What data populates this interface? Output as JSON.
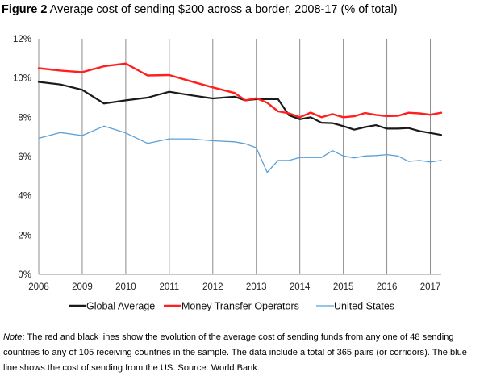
{
  "figure": {
    "label": "Figure 2",
    "title": "Average cost of sending $200 across a border, 2008-17 (% of total)"
  },
  "chart_data": {
    "type": "line",
    "title": "Average cost of sending $200 across a border, 2008-17 (% of total)",
    "xlabel": "",
    "ylabel": "",
    "xlim": [
      2008,
      2017.25
    ],
    "ylim": [
      0,
      12
    ],
    "x_ticks": [
      2008,
      2009,
      2010,
      2011,
      2012,
      2013,
      2014,
      2015,
      2016,
      2017
    ],
    "x_tick_labels": [
      "2008",
      "2009",
      "2010",
      "2011",
      "2012",
      "2013",
      "2014",
      "2015",
      "2016",
      "2017"
    ],
    "y_ticks": [
      0,
      2,
      4,
      6,
      8,
      10,
      12
    ],
    "y_tick_labels": [
      "0%",
      "2%",
      "4%",
      "6%",
      "8%",
      "10%",
      "12%"
    ],
    "grid": "vertical",
    "legend_position": "bottom",
    "series": [
      {
        "name": "Global Average",
        "color": "#1a1a1a",
        "points": [
          [
            2008,
            9.8
          ],
          [
            2008.5,
            9.67
          ],
          [
            2009,
            9.4
          ],
          [
            2009.5,
            8.7
          ],
          [
            2010,
            8.86
          ],
          [
            2010.5,
            9.0
          ],
          [
            2011,
            9.3
          ],
          [
            2011.5,
            9.12
          ],
          [
            2012,
            8.96
          ],
          [
            2012.5,
            9.05
          ],
          [
            2012.75,
            8.86
          ],
          [
            2013,
            8.92
          ],
          [
            2013.25,
            8.92
          ],
          [
            2013.5,
            8.92
          ],
          [
            2013.75,
            8.1
          ],
          [
            2014,
            7.9
          ],
          [
            2014.25,
            8.0
          ],
          [
            2014.5,
            7.72
          ],
          [
            2014.75,
            7.7
          ],
          [
            2015,
            7.55
          ],
          [
            2015.25,
            7.37
          ],
          [
            2015.5,
            7.5
          ],
          [
            2015.75,
            7.6
          ],
          [
            2016,
            7.42
          ],
          [
            2016.25,
            7.42
          ],
          [
            2016.5,
            7.45
          ],
          [
            2016.75,
            7.3
          ],
          [
            2017,
            7.2
          ],
          [
            2017.25,
            7.1
          ]
        ]
      },
      {
        "name": "Money Transfer Operators",
        "color": "#ff1f1f",
        "points": [
          [
            2008,
            10.5
          ],
          [
            2008.5,
            10.38
          ],
          [
            2009,
            10.3
          ],
          [
            2009.5,
            10.6
          ],
          [
            2010,
            10.74
          ],
          [
            2010.5,
            10.13
          ],
          [
            2011,
            10.15
          ],
          [
            2011.5,
            9.83
          ],
          [
            2012,
            9.52
          ],
          [
            2012.5,
            9.24
          ],
          [
            2012.75,
            8.86
          ],
          [
            2013,
            8.97
          ],
          [
            2013.25,
            8.74
          ],
          [
            2013.5,
            8.3
          ],
          [
            2013.75,
            8.2
          ],
          [
            2014,
            8.0
          ],
          [
            2014.25,
            8.24
          ],
          [
            2014.5,
            8.0
          ],
          [
            2014.75,
            8.16
          ],
          [
            2015,
            8.0
          ],
          [
            2015.25,
            8.05
          ],
          [
            2015.5,
            8.22
          ],
          [
            2015.75,
            8.12
          ],
          [
            2016,
            8.06
          ],
          [
            2016.25,
            8.07
          ],
          [
            2016.5,
            8.23
          ],
          [
            2016.75,
            8.2
          ],
          [
            2017,
            8.13
          ],
          [
            2017.25,
            8.23
          ]
        ]
      },
      {
        "name": "United States",
        "color": "#5aa0d8",
        "points": [
          [
            2008,
            6.93
          ],
          [
            2008.5,
            7.22
          ],
          [
            2009,
            7.07
          ],
          [
            2009.5,
            7.55
          ],
          [
            2010,
            7.2
          ],
          [
            2010.5,
            6.67
          ],
          [
            2011,
            6.9
          ],
          [
            2011.5,
            6.9
          ],
          [
            2012,
            6.8
          ],
          [
            2012.5,
            6.75
          ],
          [
            2012.75,
            6.65
          ],
          [
            2013,
            6.45
          ],
          [
            2013.25,
            5.2
          ],
          [
            2013.5,
            5.8
          ],
          [
            2013.75,
            5.8
          ],
          [
            2014,
            5.95
          ],
          [
            2014.25,
            5.95
          ],
          [
            2014.5,
            5.95
          ],
          [
            2014.75,
            6.3
          ],
          [
            2015,
            6.03
          ],
          [
            2015.25,
            5.93
          ],
          [
            2015.5,
            6.03
          ],
          [
            2015.75,
            6.05
          ],
          [
            2016,
            6.1
          ],
          [
            2016.25,
            6.03
          ],
          [
            2016.5,
            5.75
          ],
          [
            2016.75,
            5.8
          ],
          [
            2017,
            5.72
          ],
          [
            2017.25,
            5.8
          ]
        ]
      }
    ]
  },
  "note": {
    "label": "Note",
    "text": ": The red and black lines show the evolution of the average cost of sending funds from any one of 48 sending countries to any of 105 receiving countries in the sample. The data include a total of 365 pairs (or corridors). The blue line shows the cost of sending from the US. Source: World Bank."
  }
}
